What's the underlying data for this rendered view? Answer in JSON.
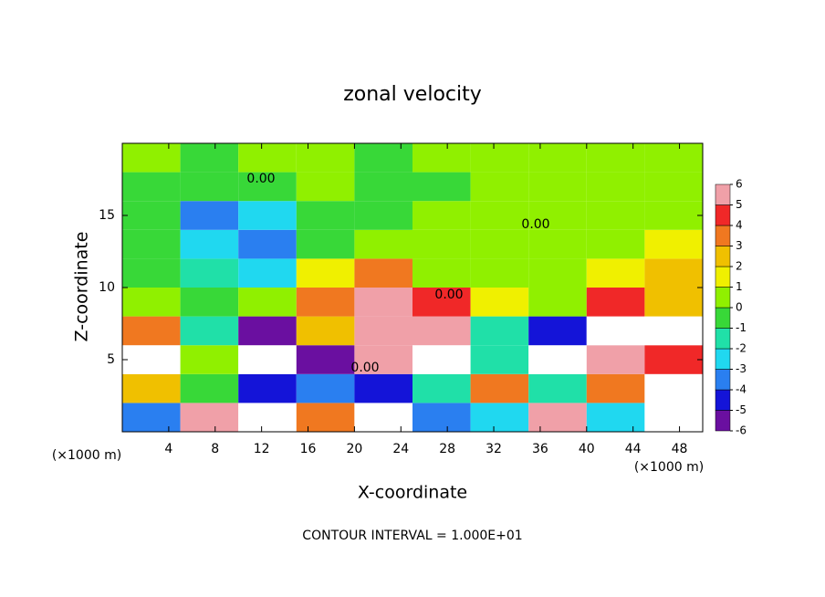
{
  "chart_data": {
    "type": "contourf",
    "title": "zonal velocity",
    "x_label": "X-coordinate",
    "y_label": "Z-coordinate",
    "x_unit": "(×1000 m)",
    "y_unit": "(×1000 m)",
    "footer": "CONTOUR INTERVAL = 1.000E+01",
    "contour_labels": [
      "0.00",
      "0.00",
      "0.00",
      "0.00"
    ],
    "xlim": [
      0,
      50
    ],
    "ylim": [
      0,
      20
    ],
    "xticks": [
      4,
      8,
      12,
      16,
      20,
      24,
      28,
      32,
      36,
      40,
      44,
      48
    ],
    "yticks": [
      5,
      10,
      15
    ],
    "x": [
      2.5,
      7.5,
      12.5,
      17.5,
      22.5,
      27.5,
      32.5,
      37.5,
      42.5,
      47.5
    ],
    "y": [
      1,
      3,
      5,
      7,
      9,
      11,
      13,
      15,
      17,
      19
    ],
    "z": [
      [
        -4,
        5,
        8,
        3,
        -8,
        -4,
        -3,
        6,
        -3,
        -7
      ],
      [
        2,
        -1,
        -5,
        -4,
        -5,
        -2,
        3,
        -2,
        3,
        -8
      ],
      [
        8,
        0,
        -8,
        -6,
        6,
        8,
        -2,
        -8,
        5,
        4
      ],
      [
        3,
        -2,
        -6,
        2,
        5,
        6,
        -2,
        -5,
        8,
        7
      ],
      [
        0,
        -1,
        0,
        3,
        5,
        4,
        1,
        0,
        4,
        2
      ],
      [
        -1,
        -2,
        -3,
        1,
        3,
        0,
        0,
        0,
        1,
        2
      ],
      [
        -1,
        -3,
        -4,
        -1,
        0,
        0,
        0,
        0,
        0,
        1
      ],
      [
        -1,
        -4,
        -3,
        -1,
        -1,
        0,
        0,
        0,
        0,
        0
      ],
      [
        -1,
        -1,
        -1,
        0,
        -1,
        -1,
        0,
        0,
        0,
        0
      ],
      [
        0,
        -1,
        0,
        0,
        -1,
        0,
        0,
        0,
        0,
        0
      ]
    ],
    "levels": [
      -6,
      -5,
      -4,
      -3,
      -2,
      -1,
      0,
      1,
      2,
      3,
      4,
      5,
      6
    ],
    "colors": [
      "#6a0fa0",
      "#1414d8",
      "#2a7ff0",
      "#20d8f0",
      "#20e0a8",
      "#38d838",
      "#90f000",
      "#f0f000",
      "#f0c000",
      "#f07820",
      "#f02828",
      "#f0a0a8"
    ],
    "out_of_range_color": "#ffffff"
  }
}
